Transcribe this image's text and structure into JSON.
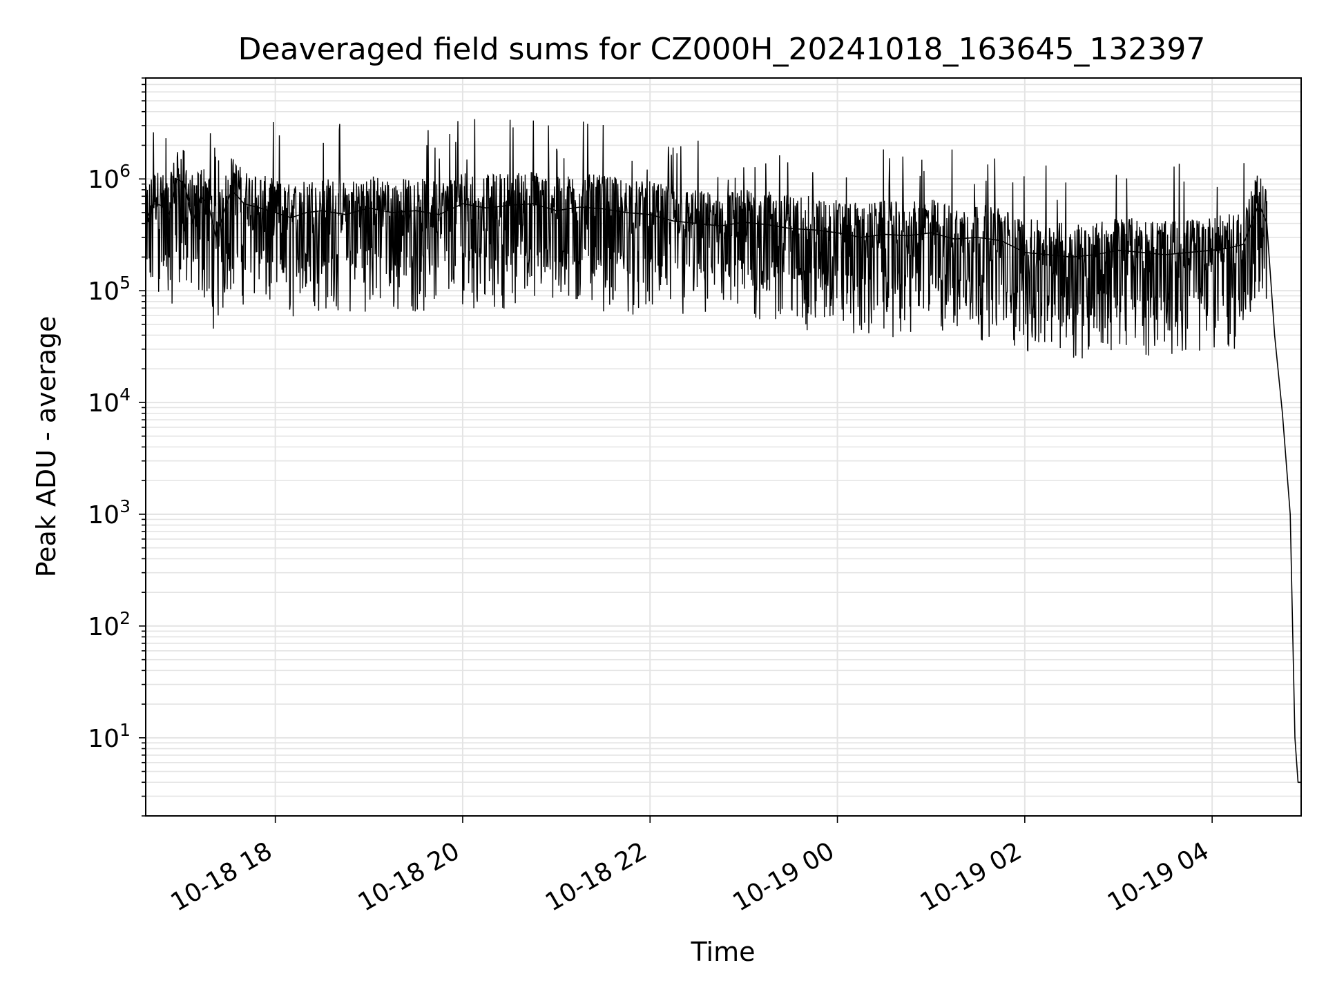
{
  "chart_data": {
    "type": "line",
    "title": "Deaveraged field sums for CZ000H_20241018_163645_132397",
    "xlabel": "Time",
    "ylabel": "Peak ADU - average",
    "yscale": "log",
    "grid": "major and minor",
    "xlim": [
      "2024-10-18 16:37",
      "2024-10-19 04:57"
    ],
    "ylim": [
      2,
      8000000
    ],
    "x_ticks": [
      {
        "value": "2024-10-18 18:00",
        "label": "10-18 18"
      },
      {
        "value": "2024-10-18 20:00",
        "label": "10-18 20"
      },
      {
        "value": "2024-10-18 22:00",
        "label": "10-18 22"
      },
      {
        "value": "2024-10-19 00:00",
        "label": "10-19 00"
      },
      {
        "value": "2024-10-19 02:00",
        "label": "10-19 02"
      },
      {
        "value": "2024-10-19 04:00",
        "label": "10-19 04"
      }
    ],
    "y_ticks": [
      {
        "value": 10,
        "base": "10",
        "exp": "1"
      },
      {
        "value": 100,
        "base": "10",
        "exp": "2"
      },
      {
        "value": 1000,
        "base": "10",
        "exp": "3"
      },
      {
        "value": 10000,
        "base": "10",
        "exp": "4"
      },
      {
        "value": 100000,
        "base": "10",
        "exp": "5"
      },
      {
        "value": 1000000,
        "base": "10",
        "exp": "6"
      }
    ],
    "series": [
      {
        "color": "#000000",
        "x": [
          "2024-10-18 16:37",
          "2024-10-18 16:42",
          "2024-10-18 16:47",
          "2024-10-18 16:52",
          "2024-10-18 16:57",
          "2024-10-18 17:02",
          "2024-10-18 17:07",
          "2024-10-18 17:12",
          "2024-10-18 17:17",
          "2024-10-18 17:22",
          "2024-10-18 17:27",
          "2024-10-18 17:32",
          "2024-10-18 17:40",
          "2024-10-18 17:50",
          "2024-10-18 18:00",
          "2024-10-18 18:10",
          "2024-10-18 18:20",
          "2024-10-18 18:30",
          "2024-10-18 18:45",
          "2024-10-18 19:00",
          "2024-10-18 19:15",
          "2024-10-18 19:30",
          "2024-10-18 19:45",
          "2024-10-18 20:00",
          "2024-10-18 20:15",
          "2024-10-18 20:30",
          "2024-10-18 20:45",
          "2024-10-18 21:00",
          "2024-10-18 21:15",
          "2024-10-18 21:30",
          "2024-10-18 21:45",
          "2024-10-18 22:00",
          "2024-10-18 22:15",
          "2024-10-18 22:30",
          "2024-10-18 22:45",
          "2024-10-18 23:00",
          "2024-10-18 23:15",
          "2024-10-18 23:30",
          "2024-10-18 23:45",
          "2024-10-19 00:00",
          "2024-10-19 00:15",
          "2024-10-19 00:30",
          "2024-10-19 00:45",
          "2024-10-19 01:00",
          "2024-10-19 01:15",
          "2024-10-19 01:30",
          "2024-10-19 01:45",
          "2024-10-19 02:00",
          "2024-10-19 02:15",
          "2024-10-19 02:30",
          "2024-10-19 02:45",
          "2024-10-19 03:00",
          "2024-10-19 03:15",
          "2024-10-19 03:30",
          "2024-10-19 03:45",
          "2024-10-19 04:00",
          "2024-10-19 04:10",
          "2024-10-19 04:20",
          "2024-10-19 04:30",
          "2024-10-19 04:35",
          "2024-10-19 04:40",
          "2024-10-19 04:45",
          "2024-10-19 04:50",
          "2024-10-19 04:53",
          "2024-10-19 04:55",
          "2024-10-19 04:57"
        ],
        "y": [
          420000,
          600000,
          580000,
          480000,
          1000000,
          900000,
          400000,
          700000,
          600000,
          300000,
          500000,
          800000,
          600000,
          550000,
          500000,
          450000,
          500000,
          520000,
          480000,
          550000,
          500000,
          520000,
          480000,
          600000,
          550000,
          580000,
          600000,
          520000,
          560000,
          540000,
          500000,
          480000,
          420000,
          400000,
          380000,
          410000,
          390000,
          360000,
          350000,
          330000,
          300000,
          320000,
          310000,
          330000,
          290000,
          300000,
          280000,
          220000,
          210000,
          200000,
          210000,
          230000,
          220000,
          210000,
          220000,
          230000,
          240000,
          260000,
          600000,
          400000,
          40000,
          8000,
          1000,
          10,
          4,
          4
        ]
      }
    ]
  }
}
